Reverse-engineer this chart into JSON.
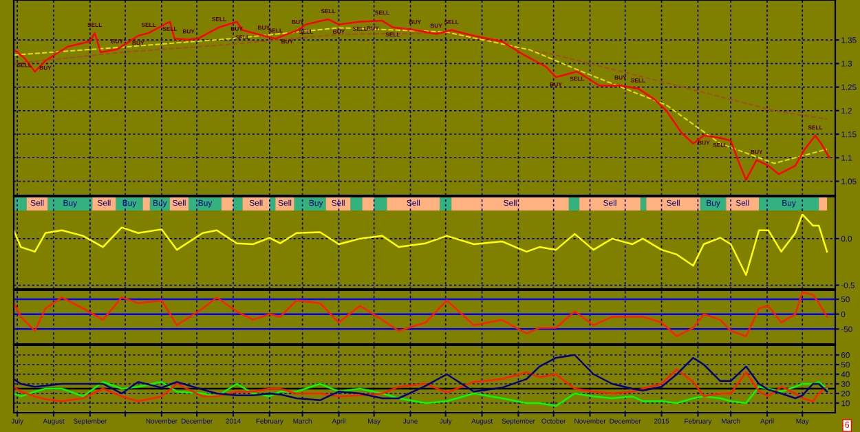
{
  "chart_data": [
    {
      "type": "line",
      "grid": true,
      "line_style": "solid",
      "tick_labels": "y",
      "xlim": [
        "2013-06-28",
        "2015-05-29"
      ],
      "ylim": [
        1.02,
        1.435
      ],
      "yticks": [
        1.05,
        1.1,
        1.15,
        1.2,
        1.25,
        1.3,
        1.35
      ],
      "xticks": [
        {
          "value": "2013-07-01",
          "label": null
        },
        {
          "value": "2013-08-01",
          "label": null
        },
        {
          "value": "2013-09-01",
          "label": null
        },
        {
          "value": "2013-10-01",
          "label": null
        },
        {
          "value": "2013-11-01",
          "label": null
        },
        {
          "value": "2013-12-01",
          "label": null
        },
        {
          "value": "2014-01-01",
          "label": null
        },
        {
          "value": "2014-02-01",
          "label": null
        },
        {
          "value": "2014-03-01",
          "label": null
        },
        {
          "value": "2014-04-01",
          "label": null
        },
        {
          "value": "2014-05-01",
          "label": null
        },
        {
          "value": "2014-06-01",
          "label": null
        },
        {
          "value": "2014-07-01",
          "label": null
        },
        {
          "value": "2014-08-01",
          "label": null
        },
        {
          "value": "2014-09-01",
          "label": null
        },
        {
          "value": "2014-10-01",
          "label": null
        },
        {
          "value": "2014-11-01",
          "label": null
        },
        {
          "value": "2014-12-01",
          "label": null
        },
        {
          "value": "2015-01-01",
          "label": null
        },
        {
          "value": "2015-02-01",
          "label": null
        },
        {
          "value": "2015-03-01",
          "label": null
        },
        {
          "value": "2015-04-01",
          "label": null
        },
        {
          "value": "2015-05-01",
          "label": null
        }
      ],
      "series": [
        {
          "color": "#a05020",
          "line_style": "dashed",
          "x": [
            "2013-06-28",
            "2013-09-29",
            "2013-12-31",
            "2014-04-01",
            "2014-07-01",
            "2014-10-03",
            "2015-01-05",
            "2015-04-07",
            "2015-05-22"
          ],
          "values": [
            1.3,
            1.324,
            1.341,
            1.362,
            1.365,
            1.318,
            1.259,
            1.2,
            1.182
          ]
        },
        {
          "color": "#e8e000",
          "line_style": "dashed",
          "x": [
            "2013-06-28",
            "2013-09-29",
            "2013-12-31",
            "2014-04-01",
            "2014-07-01",
            "2014-09-11",
            "2014-10-26",
            "2015-01-05",
            "2015-02-20",
            "2015-04-07",
            "2015-05-22"
          ],
          "values": [
            1.318,
            1.335,
            1.353,
            1.376,
            1.367,
            1.329,
            1.282,
            1.212,
            1.13,
            1.088,
            1.118
          ]
        },
        {
          "color": "#ff0000",
          "x": [
            "2013-06-28",
            "2013-07-07",
            "2013-07-16",
            "2013-07-25",
            "2013-08-13",
            "2013-09-01",
            "2013-09-05",
            "2013-09-10",
            "2013-09-24",
            "2013-10-12",
            "2013-10-21",
            "2013-11-08",
            "2013-11-12",
            "2013-11-24",
            "2013-12-02",
            "2013-12-20",
            "2014-01-04",
            "2014-01-09",
            "2014-01-27",
            "2014-02-06",
            "2014-02-25",
            "2014-03-04",
            "2014-03-23",
            "2014-04-01",
            "2014-04-19",
            "2014-05-08",
            "2014-05-17",
            "2014-06-05",
            "2014-06-23",
            "2014-07-06",
            "2014-07-25",
            "2014-08-18",
            "2014-09-06",
            "2014-09-24",
            "2014-10-03",
            "2014-10-21",
            "2014-11-09",
            "2014-11-27",
            "2014-12-12",
            "2014-12-26",
            "2015-01-05",
            "2015-01-18",
            "2015-01-28",
            "2015-02-06",
            "2015-02-20",
            "2015-03-01",
            "2015-03-09",
            "2015-03-14",
            "2015-03-23",
            "2015-04-02",
            "2015-04-11",
            "2015-04-25",
            "2015-05-03",
            "2015-05-12",
            "2015-05-17",
            "2015-05-24"
          ],
          "values": [
            1.33,
            1.312,
            1.283,
            1.306,
            1.336,
            1.347,
            1.365,
            1.324,
            1.33,
            1.359,
            1.365,
            1.389,
            1.353,
            1.351,
            1.353,
            1.377,
            1.389,
            1.371,
            1.359,
            1.353,
            1.371,
            1.383,
            1.394,
            1.383,
            1.389,
            1.391,
            1.377,
            1.371,
            1.363,
            1.371,
            1.359,
            1.347,
            1.318,
            1.294,
            1.271,
            1.283,
            1.253,
            1.253,
            1.247,
            1.224,
            1.2,
            1.153,
            1.13,
            1.147,
            1.142,
            1.136,
            1.083,
            1.053,
            1.095,
            1.083,
            1.065,
            1.083,
            1.118,
            1.147,
            1.13,
            1.1
          ]
        }
      ],
      "annotations": [
        {
          "text": "SELL",
          "x": "2013-09-05",
          "y": 1.365
        },
        {
          "text": "SELL",
          "x": "2013-07-07",
          "y": 1.312
        },
        {
          "text": "SELL",
          "x": "2013-10-21",
          "y": 1.365
        },
        {
          "text": "SELL",
          "x": "2013-11-08",
          "y": 1.389
        },
        {
          "text": "SELL",
          "x": "2013-12-20",
          "y": 1.377
        },
        {
          "text": "SELL",
          "x": "2014-01-09",
          "y": 1.371
        },
        {
          "text": "SELL",
          "x": "2014-02-06",
          "y": 1.353
        },
        {
          "text": "SELL",
          "x": "2014-03-04",
          "y": 1.383
        },
        {
          "text": "SELL",
          "x": "2014-03-23",
          "y": 1.394
        },
        {
          "text": "SELL",
          "x": "2014-04-19",
          "y": 1.389
        },
        {
          "text": "SELL",
          "x": "2014-05-08",
          "y": 1.391
        },
        {
          "text": "SELL",
          "x": "2014-05-17",
          "y": 1.377
        },
        {
          "text": "SELL",
          "x": "2014-07-06",
          "y": 1.371
        },
        {
          "text": "SELL",
          "x": "2014-10-21",
          "y": 1.283
        },
        {
          "text": "SELL",
          "x": "2014-12-12",
          "y": 1.247
        },
        {
          "text": "SELL",
          "x": "2015-02-20",
          "y": 1.142
        },
        {
          "text": "SELL",
          "x": "2015-05-12",
          "y": 1.147
        },
        {
          "text": "BUY",
          "x": "2013-07-25",
          "y": 1.306
        },
        {
          "text": "BUY",
          "x": "2013-09-24",
          "y": 1.33
        },
        {
          "text": "BUY",
          "x": "2013-10-12",
          "y": 1.359
        },
        {
          "text": "BUY",
          "x": "2013-11-24",
          "y": 1.351
        },
        {
          "text": "BUY",
          "x": "2014-01-04",
          "y": 1.389
        },
        {
          "text": "BUY",
          "x": "2014-01-27",
          "y": 1.359
        },
        {
          "text": "BUY",
          "x": "2014-02-16",
          "y": 1.362
        },
        {
          "text": "BUY",
          "x": "2014-02-25",
          "y": 1.371
        },
        {
          "text": "BUY",
          "x": "2014-04-01",
          "y": 1.383
        },
        {
          "text": "BUY",
          "x": "2014-06-05",
          "y": 1.371
        },
        {
          "text": "BUY",
          "x": "2014-04-30",
          "y": 1.39
        },
        {
          "text": "BUY",
          "x": "2014-06-23",
          "y": 1.363
        },
        {
          "text": "BUY",
          "x": "2014-10-03",
          "y": 1.271
        },
        {
          "text": "BUY",
          "x": "2014-11-27",
          "y": 1.253
        },
        {
          "text": "BUY",
          "x": "2015-02-06",
          "y": 1.147
        },
        {
          "text": "BUY",
          "x": "2015-03-23",
          "y": 1.095
        }
      ]
    },
    {
      "type": "line",
      "grid": true,
      "line_style": "solid",
      "tick_labels": "y",
      "xlim": [
        "2013-06-28",
        "2015-05-29"
      ],
      "ylim": [
        -0.54,
        0.45
      ],
      "yticks": [
        {
          "value": 0,
          "label": "0.0"
        },
        -0.5
      ],
      "xticks": [
        {
          "value": "2013-07-01",
          "label": null
        },
        {
          "value": "2013-08-01",
          "label": null
        },
        {
          "value": "2013-09-01",
          "label": null
        },
        {
          "value": "2013-10-01",
          "label": null
        },
        {
          "value": "2013-11-01",
          "label": null
        },
        {
          "value": "2013-12-01",
          "label": null
        },
        {
          "value": "2014-01-01",
          "label": null
        },
        {
          "value": "2014-02-01",
          "label": null
        },
        {
          "value": "2014-03-01",
          "label": null
        },
        {
          "value": "2014-04-01",
          "label": null
        },
        {
          "value": "2014-05-01",
          "label": null
        },
        {
          "value": "2014-06-01",
          "label": null
        },
        {
          "value": "2014-07-01",
          "label": null
        },
        {
          "value": "2014-08-01",
          "label": null
        },
        {
          "value": "2014-09-01",
          "label": null
        },
        {
          "value": "2014-10-01",
          "label": null
        },
        {
          "value": "2014-11-01",
          "label": null
        },
        {
          "value": "2014-12-01",
          "label": null
        },
        {
          "value": "2015-01-01",
          "label": null
        },
        {
          "value": "2015-02-01",
          "label": null
        },
        {
          "value": "2015-03-01",
          "label": null
        },
        {
          "value": "2015-04-01",
          "label": null
        },
        {
          "value": "2015-05-01",
          "label": null
        }
      ],
      "x": [
        "2013-06-28",
        "2013-07-04",
        "2013-07-16",
        "2013-07-25",
        "2013-08-08",
        "2013-08-26",
        "2013-09-12",
        "2013-09-28",
        "2013-10-12",
        "2013-11-01",
        "2013-11-14",
        "2013-12-06",
        "2013-12-18",
        "2014-01-04",
        "2014-01-18",
        "2014-02-01",
        "2014-02-10",
        "2014-02-24",
        "2014-03-16",
        "2014-04-01",
        "2014-04-19",
        "2014-05-08",
        "2014-05-22",
        "2014-06-14",
        "2014-07-02",
        "2014-07-25",
        "2014-08-18",
        "2014-09-08",
        "2014-09-19",
        "2014-10-03",
        "2014-10-19",
        "2014-11-04",
        "2014-11-20",
        "2014-12-07",
        "2014-12-16",
        "2015-01-01",
        "2015-01-14",
        "2015-01-28",
        "2015-02-06",
        "2015-02-20",
        "2015-03-01",
        "2015-03-14",
        "2015-03-25",
        "2015-04-02",
        "2015-04-13",
        "2015-04-25",
        "2015-05-01",
        "2015-05-10",
        "2015-05-15",
        "2015-05-22"
      ],
      "series": [
        {
          "color": "#ffff00",
          "values": [
            0.09,
            -0.09,
            -0.14,
            0.06,
            0.09,
            0.03,
            -0.09,
            0.12,
            0.06,
            0.1,
            -0.12,
            0.06,
            0.09,
            -0.05,
            -0.06,
            0.01,
            -0.05,
            0.06,
            0.07,
            -0.06,
            0,
            0.03,
            -0.09,
            -0.05,
            0.03,
            -0.06,
            -0.03,
            -0.14,
            -0.09,
            -0.12,
            0.05,
            -0.12,
            0,
            -0.06,
            0,
            -0.12,
            -0.17,
            -0.29,
            -0.06,
            0.01,
            -0.06,
            -0.39,
            0.09,
            0.09,
            -0.14,
            0.06,
            0.26,
            0.14,
            0.14,
            -0.14
          ]
        }
      ],
      "bands": [
        {
          "axis": "x",
          "from": "2013-06-28",
          "to": "2013-07-09",
          "color": "#33b27f"
        },
        {
          "axis": "x",
          "from": "2013-07-09",
          "to": "2013-07-27",
          "label": "Sell",
          "color": "#ffb27f"
        },
        {
          "axis": "x",
          "from": "2013-07-27",
          "to": "2013-09-03",
          "label": "Buy",
          "color": "#33b27f"
        },
        {
          "axis": "x",
          "from": "2013-09-03",
          "to": "2013-09-23",
          "label": "Sell",
          "color": "#ffb27f"
        },
        {
          "axis": "x",
          "from": "2013-09-23",
          "to": "2013-10-16",
          "label": "Buy",
          "color": "#33b27f"
        },
        {
          "axis": "x",
          "from": "2013-10-16",
          "to": "2013-10-22",
          "color": "#ffb27f"
        },
        {
          "axis": "x",
          "from": "2013-10-22",
          "to": "2013-11-08",
          "label": "Buy",
          "color": "#33b27f"
        },
        {
          "axis": "x",
          "from": "2013-11-08",
          "to": "2013-11-24",
          "label": "Sell",
          "color": "#ffb27f"
        },
        {
          "axis": "x",
          "from": "2013-11-24",
          "to": "2013-12-22",
          "label": "Buy",
          "color": "#33b27f"
        },
        {
          "axis": "x",
          "from": "2013-12-22",
          "to": "2014-01-01",
          "color": "#ffb27f"
        },
        {
          "axis": "x",
          "from": "2014-01-01",
          "to": "2014-01-09",
          "color": "#33b27f"
        },
        {
          "axis": "x",
          "from": "2014-01-09",
          "to": "2014-02-01",
          "label": "Sell",
          "color": "#ffb27f"
        },
        {
          "axis": "x",
          "from": "2014-02-01",
          "to": "2014-02-06",
          "color": "#33b27f"
        },
        {
          "axis": "x",
          "from": "2014-02-06",
          "to": "2014-02-22",
          "label": "Sell",
          "color": "#ffb27f"
        },
        {
          "axis": "x",
          "from": "2014-02-22",
          "to": "2014-03-04",
          "color": "#33b27f"
        },
        {
          "axis": "x",
          "from": "2014-03-04",
          "to": "2014-03-21",
          "label": "Buy",
          "color": "#33b27f"
        },
        {
          "axis": "x",
          "from": "2014-03-21",
          "to": "2014-04-11",
          "label": "Sell",
          "color": "#ffb27f"
        },
        {
          "axis": "x",
          "from": "2014-04-11",
          "to": "2014-04-21",
          "color": "#33b27f"
        },
        {
          "axis": "x",
          "from": "2014-04-21",
          "to": "2014-05-01",
          "color": "#ffb27f"
        },
        {
          "axis": "x",
          "from": "2014-05-01",
          "to": "2014-05-12",
          "color": "#33b27f"
        },
        {
          "axis": "x",
          "from": "2014-05-12",
          "to": "2014-06-26",
          "label": "Sell",
          "color": "#ffb27f"
        },
        {
          "axis": "x",
          "from": "2014-06-26",
          "to": "2014-07-06",
          "color": "#33b27f"
        },
        {
          "axis": "x",
          "from": "2014-07-06",
          "to": "2014-10-14",
          "label": "Sell",
          "color": "#ffb27f"
        },
        {
          "axis": "x",
          "from": "2014-10-14",
          "to": "2014-10-23",
          "color": "#33b27f"
        },
        {
          "axis": "x",
          "from": "2014-10-23",
          "to": "2014-12-14",
          "label": "Sell",
          "color": "#ffb27f"
        },
        {
          "axis": "x",
          "from": "2014-12-14",
          "to": "2014-12-19",
          "color": "#33b27f"
        },
        {
          "axis": "x",
          "from": "2014-12-19",
          "to": "2015-02-03",
          "label": "Sell",
          "color": "#ffb27f"
        },
        {
          "axis": "x",
          "from": "2015-02-03",
          "to": "2015-02-25",
          "label": "Buy",
          "color": "#33b27f"
        },
        {
          "axis": "x",
          "from": "2015-02-25",
          "to": "2015-03-25",
          "label": "Sell",
          "color": "#ffb27f"
        },
        {
          "axis": "x",
          "from": "2015-03-25",
          "to": "2015-05-15",
          "label": "Buy",
          "color": "#33b27f"
        },
        {
          "axis": "x",
          "from": "2015-05-15",
          "to": "2015-05-22",
          "color": "#ffb27f"
        }
      ]
    },
    {
      "type": "line",
      "grid": "x",
      "line_style": "solid",
      "tick_labels": "y",
      "xlim": [
        "2013-06-28",
        "2015-05-29"
      ],
      "ylim": [
        -100,
        80
      ],
      "yticks": [
        -50,
        0,
        50
      ],
      "xticks": [
        {
          "value": "2013-07-01",
          "label": null
        },
        {
          "value": "2013-08-01",
          "label": null
        },
        {
          "value": "2013-09-01",
          "label": null
        },
        {
          "value": "2013-10-01",
          "label": null
        },
        {
          "value": "2013-11-01",
          "label": null
        },
        {
          "value": "2013-12-01",
          "label": null
        },
        {
          "value": "2014-01-01",
          "label": null
        },
        {
          "value": "2014-02-01",
          "label": null
        },
        {
          "value": "2014-03-01",
          "label": null
        },
        {
          "value": "2014-04-01",
          "label": null
        },
        {
          "value": "2014-05-01",
          "label": null
        },
        {
          "value": "2014-06-01",
          "label": null
        },
        {
          "value": "2014-07-01",
          "label": null
        },
        {
          "value": "2014-08-01",
          "label": null
        },
        {
          "value": "2014-09-01",
          "label": null
        },
        {
          "value": "2014-10-01",
          "label": null
        },
        {
          "value": "2014-11-01",
          "label": null
        },
        {
          "value": "2014-12-01",
          "label": null
        },
        {
          "value": "2015-01-01",
          "label": null
        },
        {
          "value": "2015-02-01",
          "label": null
        },
        {
          "value": "2015-03-01",
          "label": null
        },
        {
          "value": "2015-04-01",
          "label": null
        },
        {
          "value": "2015-05-01",
          "label": null
        }
      ],
      "x": [
        "2013-06-28",
        "2013-07-04",
        "2013-07-16",
        "2013-07-25",
        "2013-08-08",
        "2013-08-26",
        "2013-09-12",
        "2013-09-28",
        "2013-10-12",
        "2013-11-01",
        "2013-11-14",
        "2013-12-06",
        "2013-12-18",
        "2014-01-04",
        "2014-01-18",
        "2014-02-01",
        "2014-02-10",
        "2014-02-24",
        "2014-03-16",
        "2014-04-01",
        "2014-04-19",
        "2014-05-08",
        "2014-05-22",
        "2014-06-14",
        "2014-07-02",
        "2014-07-25",
        "2014-08-18",
        "2014-09-08",
        "2014-09-19",
        "2014-10-03",
        "2014-10-19",
        "2014-11-04",
        "2014-11-20",
        "2014-12-07",
        "2014-12-16",
        "2015-01-01",
        "2015-01-14",
        "2015-01-28",
        "2015-02-06",
        "2015-02-20",
        "2015-03-01",
        "2015-03-14",
        "2015-03-25",
        "2015-04-02",
        "2015-04-13",
        "2015-04-25",
        "2015-05-01",
        "2015-05-10",
        "2015-05-15",
        "2015-05-22"
      ],
      "series": [
        {
          "color": "#ff2000",
          "values": [
            37,
            -9,
            -56,
            19,
            56,
            19,
            -19,
            56,
            37,
            46,
            -37,
            19,
            56,
            9,
            -19,
            0,
            -9,
            46,
            37,
            -28,
            28,
            -19,
            -56,
            -28,
            46,
            -37,
            -19,
            -65,
            -46,
            -46,
            9,
            -37,
            -9,
            -9,
            -9,
            -28,
            -74,
            -46,
            0,
            -19,
            -56,
            -74,
            19,
            28,
            -28,
            0,
            74,
            65,
            37,
            -9
          ]
        }
      ],
      "ref_lines": [
        {
          "axis": "y",
          "value": 50,
          "color": "#0000ff"
        },
        {
          "axis": "y",
          "value": 0,
          "color": "#0000ff"
        },
        {
          "axis": "y",
          "value": -50,
          "color": "#0000ff"
        }
      ]
    },
    {
      "type": "line",
      "grid": true,
      "line_style": "solid",
      "xlim": [
        "2013-06-28",
        "2015-05-29"
      ],
      "ylim": [
        0,
        70
      ],
      "yticks": [
        10,
        20,
        30,
        40,
        50,
        60
      ],
      "xticks": [
        {
          "value": "2013-07-01",
          "label": "July"
        },
        {
          "value": "2013-08-01",
          "label": "August"
        },
        {
          "value": "2013-09-01",
          "label": "September"
        },
        {
          "value": "2013-10-01",
          "label": null
        },
        {
          "value": "2013-11-01",
          "label": "November"
        },
        {
          "value": "2013-12-01",
          "label": "December"
        },
        {
          "value": "2014-01-01",
          "label": "2014"
        },
        {
          "value": "2014-02-01",
          "label": "February"
        },
        {
          "value": "2014-03-01",
          "label": "March"
        },
        {
          "value": "2014-04-01",
          "label": "April"
        },
        {
          "value": "2014-05-01",
          "label": "May"
        },
        {
          "value": "2014-06-01",
          "label": "June"
        },
        {
          "value": "2014-07-01",
          "label": "July"
        },
        {
          "value": "2014-08-01",
          "label": "August"
        },
        {
          "value": "2014-09-01",
          "label": "September"
        },
        {
          "value": "2014-10-01",
          "label": "October"
        },
        {
          "value": "2014-11-01",
          "label": "November"
        },
        {
          "value": "2014-12-01",
          "label": "December"
        },
        {
          "value": "2015-01-01",
          "label": "2015"
        },
        {
          "value": "2015-02-01",
          "label": "February"
        },
        {
          "value": "2015-03-01",
          "label": "March"
        },
        {
          "value": "2015-04-01",
          "label": "April"
        },
        {
          "value": "2015-05-01",
          "label": "May"
        }
      ],
      "x": [
        "2013-06-28",
        "2013-07-04",
        "2013-07-16",
        "2013-07-25",
        "2013-08-08",
        "2013-08-26",
        "2013-09-12",
        "2013-09-28",
        "2013-10-12",
        "2013-11-01",
        "2013-11-14",
        "2013-12-06",
        "2013-12-18",
        "2014-01-04",
        "2014-01-18",
        "2014-02-01",
        "2014-02-10",
        "2014-02-24",
        "2014-03-16",
        "2014-04-01",
        "2014-04-19",
        "2014-05-08",
        "2014-05-22",
        "2014-06-14",
        "2014-07-02",
        "2014-07-25",
        "2014-08-18",
        "2014-09-08",
        "2014-09-19",
        "2014-10-03",
        "2014-10-19",
        "2014-11-04",
        "2014-11-20",
        "2014-12-07",
        "2014-12-16",
        "2015-01-01",
        "2015-01-14",
        "2015-01-28",
        "2015-02-06",
        "2015-02-20",
        "2015-03-01",
        "2015-03-14",
        "2015-03-25",
        "2015-04-02",
        "2015-04-13",
        "2015-04-25",
        "2015-05-01",
        "2015-05-10",
        "2015-05-15",
        "2015-05-22"
      ],
      "series": [
        {
          "color": "#00ff00",
          "values": [
            20,
            17,
            22,
            25,
            25,
            17,
            32,
            25,
            27,
            32,
            22,
            20,
            17,
            30,
            20,
            17,
            22,
            22,
            30,
            22,
            25,
            20,
            15,
            10,
            12,
            20,
            15,
            10,
            10,
            7,
            20,
            17,
            15,
            17,
            12,
            12,
            10,
            15,
            17,
            15,
            12,
            10,
            27,
            25,
            22,
            27,
            30,
            30,
            32,
            25
          ]
        },
        {
          "color": "#ff2000",
          "values": [
            27,
            22,
            17,
            14,
            12,
            15,
            25,
            17,
            12,
            17,
            30,
            17,
            17,
            22,
            22,
            25,
            25,
            20,
            20,
            17,
            18,
            20,
            27,
            30,
            21,
            32,
            35,
            42,
            37,
            40,
            25,
            22,
            20,
            22,
            25,
            30,
            45,
            32,
            17,
            20,
            20,
            42,
            22,
            17,
            27,
            20,
            15,
            12,
            20,
            27
          ]
        },
        {
          "color": "#000080",
          "values": [
            35,
            30,
            27,
            28,
            30,
            30,
            30,
            20,
            32,
            26,
            32,
            24,
            20,
            18,
            18,
            20,
            19,
            15,
            13,
            22,
            20,
            15,
            15,
            28,
            40,
            22,
            26,
            35,
            48,
            57,
            60,
            40,
            30,
            25,
            23,
            27,
            40,
            57,
            50,
            33,
            33,
            48,
            30,
            24,
            20,
            15,
            18,
            30,
            30,
            22
          ]
        }
      ],
      "ref_lines": [
        {
          "axis": "y",
          "value": 25,
          "color": "#000000"
        }
      ],
      "annotations": [
        "6"
      ]
    }
  ]
}
